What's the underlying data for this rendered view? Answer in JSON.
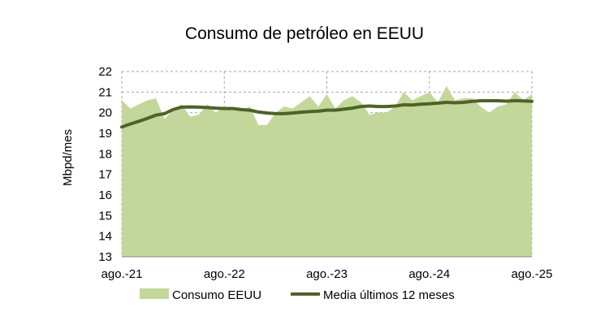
{
  "chart_data": {
    "type": "area",
    "title": "Consumo de petróleo en EEUU",
    "xlabel": "",
    "ylabel": "Mbpd/mes",
    "ylim": [
      13,
      22
    ],
    "yticks": [
      13,
      14,
      15,
      16,
      17,
      18,
      19,
      20,
      21,
      22
    ],
    "xtick_labels": [
      "ago.-21",
      "ago.-22",
      "ago.-23",
      "ago.-24",
      "ago.-25"
    ],
    "grid": "dashed",
    "legend_position": "bottom",
    "series": [
      {
        "name": "Consumo EEUU",
        "kind": "area",
        "color": "#c4d79b",
        "values": [
          20.6,
          20.2,
          20.4,
          20.6,
          20.7,
          19.7,
          20.1,
          20.4,
          19.8,
          19.9,
          20.4,
          20.0,
          20.3,
          20.2,
          20.1,
          20.3,
          19.4,
          19.4,
          20.0,
          20.3,
          20.2,
          20.5,
          20.8,
          20.3,
          20.9,
          20.2,
          20.6,
          20.8,
          20.5,
          19.9,
          20.0,
          20.0,
          20.3,
          21.0,
          20.6,
          20.8,
          21.0,
          20.5,
          21.3,
          20.6,
          20.7,
          20.7,
          20.3,
          20.0,
          20.3,
          20.4,
          21.0,
          20.6,
          20.9
        ]
      },
      {
        "name": "Media últimos 12 meses",
        "kind": "line",
        "color": "#4f6228",
        "values": [
          19.3,
          19.45,
          19.58,
          19.72,
          19.88,
          19.95,
          20.15,
          20.27,
          20.28,
          20.27,
          20.25,
          20.22,
          20.2,
          20.2,
          20.15,
          20.12,
          20.03,
          19.98,
          19.95,
          19.95,
          19.98,
          20.02,
          20.05,
          20.07,
          20.12,
          20.12,
          20.17,
          20.22,
          20.3,
          20.32,
          20.3,
          20.3,
          20.32,
          20.38,
          20.37,
          20.41,
          20.43,
          20.46,
          20.5,
          20.48,
          20.5,
          20.55,
          20.58,
          20.58,
          20.58,
          20.56,
          20.58,
          20.57,
          20.55
        ]
      }
    ]
  }
}
